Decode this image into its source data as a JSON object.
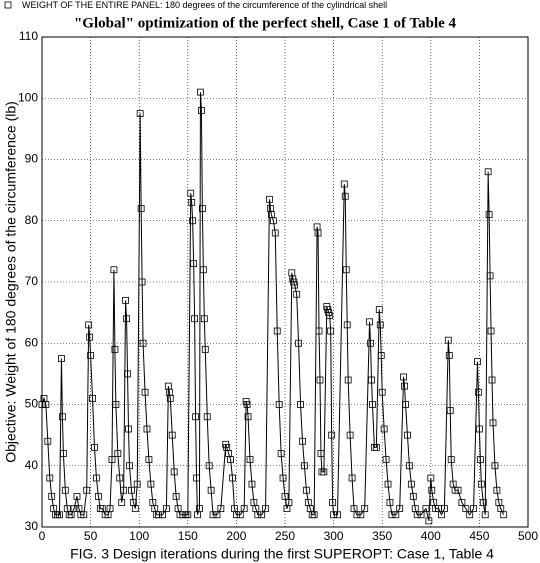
{
  "chart_data": {
    "type": "line",
    "title": "\"Global\" optimization of the perfect shell, Case 1 of Table 4",
    "y_label": "Objective: Weight of 180 degrees of the circumference (lb)",
    "caption": "FIG. 3 Design iterations during the first SUPEROPT: Case 1, Table 4",
    "x": [
      0,
      2,
      4,
      6,
      8,
      10,
      12,
      14,
      16,
      18,
      20,
      21,
      22,
      24,
      26,
      28,
      30,
      33,
      36,
      38,
      40,
      43,
      46,
      48,
      49,
      50,
      52,
      54,
      56,
      58,
      60,
      62,
      65,
      68,
      70,
      72,
      74,
      75,
      76,
      78,
      80,
      82,
      84,
      86,
      87,
      88,
      89,
      90,
      92,
      94,
      96,
      98,
      101,
      102,
      103,
      104,
      106,
      108,
      110,
      112,
      114,
      116,
      118,
      120,
      124,
      128,
      130,
      131,
      132,
      134,
      136,
      138,
      140,
      142,
      145,
      148,
      150,
      153,
      154,
      155,
      156,
      157,
      158,
      159,
      160,
      162,
      163,
      164,
      165,
      166,
      167,
      168,
      170,
      172,
      174,
      176,
      180,
      184,
      189,
      190,
      192,
      194,
      196,
      198,
      200,
      204,
      208,
      210,
      211,
      212,
      214,
      216,
      218,
      220,
      222,
      226,
      230,
      234,
      235,
      236,
      238,
      240,
      242,
      244,
      246,
      248,
      250,
      252,
      254,
      257,
      258,
      259,
      260,
      262,
      264,
      266,
      268,
      270,
      272,
      274,
      276,
      278,
      280,
      283,
      284,
      285,
      286,
      287,
      288,
      290,
      293,
      294,
      295,
      296,
      297,
      298,
      299,
      300,
      304,
      311,
      312,
      313,
      314,
      315,
      317,
      319,
      321,
      324,
      328,
      332,
      337,
      338,
      339,
      340,
      342,
      344,
      347,
      348,
      349,
      350,
      352,
      354,
      356,
      358,
      360,
      364,
      368,
      372,
      373,
      374,
      376,
      378,
      380,
      382,
      384,
      386,
      390,
      395,
      398,
      400,
      401,
      403,
      405,
      408,
      411,
      414,
      418,
      419,
      420,
      421,
      423,
      425,
      428,
      432,
      436,
      440,
      444,
      448,
      449,
      450,
      451,
      452,
      454,
      456,
      459,
      460,
      461,
      462,
      463,
      464,
      466,
      468,
      470,
      472,
      475
    ],
    "series": [
      {
        "name": "WEIGHT OF THE ENTIRE PANEL: 180 degrees of the circumference of the cylindrical shell",
        "color": "#000000",
        "marker": "square",
        "values": [
          50,
          51,
          50,
          44,
          38,
          35,
          33,
          32,
          32,
          32,
          57.5,
          48,
          42,
          36,
          33,
          32,
          32,
          33,
          35,
          33,
          32,
          32,
          36,
          63,
          61,
          58,
          51,
          43,
          38,
          35,
          33,
          33,
          32,
          32,
          33,
          41,
          72,
          59,
          50,
          42,
          38,
          34,
          36,
          67,
          64,
          55,
          46,
          40,
          36,
          34,
          33,
          37,
          97.5,
          82,
          70,
          60,
          52,
          46,
          41,
          37,
          34,
          33,
          32,
          32,
          32,
          33,
          53,
          52,
          51,
          45,
          39,
          35,
          33,
          32,
          32,
          32,
          32,
          84.5,
          83,
          80,
          73,
          64,
          48,
          38,
          32,
          33,
          101,
          98,
          82,
          72,
          64,
          59,
          48,
          40,
          36,
          32,
          32,
          33,
          43.5,
          43,
          42,
          41,
          38,
          33,
          32,
          32,
          33,
          50.5,
          50,
          48,
          41,
          37,
          34,
          33,
          32,
          32,
          33,
          83.5,
          82,
          81,
          80,
          78,
          62,
          50,
          42,
          38,
          35,
          33,
          34,
          71.5,
          70.5,
          70,
          69.5,
          68,
          60,
          50,
          44,
          40,
          36,
          34,
          33,
          32,
          32,
          79,
          78,
          62,
          54,
          42,
          39,
          39,
          66,
          65.5,
          65,
          64.5,
          62,
          45,
          34,
          32,
          32,
          86,
          84,
          72,
          63,
          54,
          45,
          38,
          33,
          32,
          32,
          33,
          63.5,
          60,
          54,
          50,
          43,
          43,
          65.5,
          63,
          58,
          52,
          46,
          41,
          37,
          34,
          32,
          32,
          33,
          54.5,
          53,
          50,
          45,
          40,
          37,
          35,
          33,
          32,
          32,
          33,
          31,
          38,
          36,
          34,
          33,
          33,
          32,
          33,
          60.5,
          58,
          49,
          41,
          37,
          36,
          36,
          34,
          33,
          32,
          33,
          57,
          52,
          46,
          41,
          37,
          34,
          32,
          88,
          81,
          71,
          62,
          54,
          47,
          40,
          36,
          34,
          33,
          32
        ]
      }
    ],
    "xlim": [
      0,
      500
    ],
    "xticks": [
      0,
      50,
      100,
      150,
      200,
      250,
      300,
      350,
      400,
      450,
      500
    ],
    "ylim": [
      30,
      110
    ],
    "yticks": [
      30,
      40,
      50,
      60,
      70,
      80,
      90,
      100,
      110
    ],
    "grid": true,
    "legend": "top-left"
  }
}
